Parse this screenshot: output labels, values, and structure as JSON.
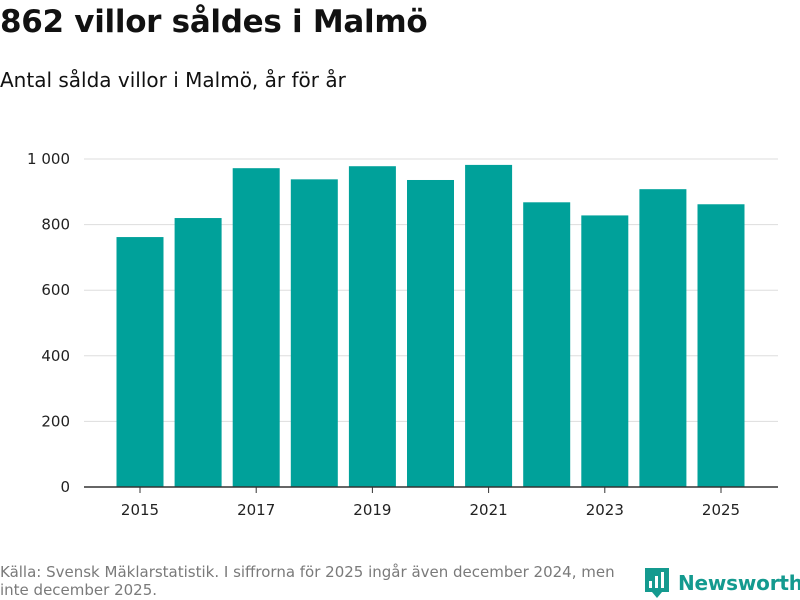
{
  "title": "862 villor såldes i Malmö",
  "subtitle": "Antal sålda villor i Malmö, år för år",
  "chart_data": {
    "type": "bar",
    "categories": [
      "2015",
      "2016",
      "2017",
      "2018",
      "2019",
      "2020",
      "2021",
      "2022",
      "2023",
      "2024",
      "2025"
    ],
    "x_tick_labels": [
      "2015",
      "2017",
      "2019",
      "2021",
      "2023",
      "2025"
    ],
    "values": [
      762,
      820,
      972,
      938,
      978,
      936,
      982,
      868,
      828,
      908,
      862
    ],
    "y_ticks": [
      0,
      200,
      400,
      600,
      800,
      1000
    ],
    "y_tick_labels": [
      "0",
      "200",
      "400",
      "600",
      "800",
      "1 000"
    ],
    "ylim": [
      0,
      1000
    ],
    "xlabel": "",
    "ylabel": "",
    "grid": true,
    "bar_color": "#00a19a"
  },
  "footer": {
    "source": "Källa: Svensk Mäklarstatistik. I siffrorna för 2025 ingår även december 2024, men inte december 2025.",
    "brand": "Newsworthy",
    "brand_color": "#149a8f"
  }
}
